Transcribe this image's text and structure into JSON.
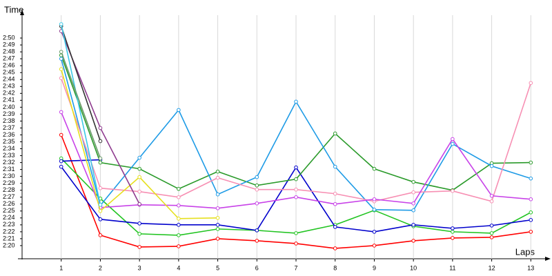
{
  "chart_data": {
    "type": "line",
    "y_label": "Time",
    "x_label": "Laps",
    "x": [
      1,
      2,
      3,
      4,
      5,
      6,
      7,
      8,
      9,
      10,
      11,
      12,
      13
    ],
    "xlim": [
      0,
      13.4
    ],
    "xticks": [
      1,
      2,
      3,
      4,
      5,
      6,
      7,
      8,
      9,
      10,
      11,
      12,
      13
    ],
    "ylim": [
      138.1,
      173.3
    ],
    "yticks": [
      {
        "value": 140,
        "label": "2:20"
      },
      {
        "value": 141,
        "label": "2:21"
      },
      {
        "value": 142,
        "label": "2:22"
      },
      {
        "value": 143,
        "label": "2:23"
      },
      {
        "value": 144,
        "label": "2:24"
      },
      {
        "value": 145,
        "label": "2:25"
      },
      {
        "value": 146,
        "label": "2:26"
      },
      {
        "value": 147,
        "label": "2:27"
      },
      {
        "value": 148,
        "label": "2:28"
      },
      {
        "value": 149,
        "label": "2:29"
      },
      {
        "value": 150,
        "label": "2:30"
      },
      {
        "value": 151,
        "label": "2:31"
      },
      {
        "value": 152,
        "label": "2:32"
      },
      {
        "value": 153,
        "label": "2:33"
      },
      {
        "value": 154,
        "label": "2:34"
      },
      {
        "value": 155,
        "label": "2:35"
      },
      {
        "value": 156,
        "label": "2:36"
      },
      {
        "value": 157,
        "label": "2:37"
      },
      {
        "value": 158,
        "label": "2:38"
      },
      {
        "value": 159,
        "label": "2:39"
      },
      {
        "value": 160,
        "label": "2:40"
      },
      {
        "value": 161,
        "label": "2:41"
      },
      {
        "value": 162,
        "label": "2:42"
      },
      {
        "value": 163,
        "label": "2:43"
      },
      {
        "value": 164,
        "label": "2:44"
      },
      {
        "value": 165,
        "label": "2:45"
      },
      {
        "value": 166,
        "label": "2:46"
      },
      {
        "value": 167,
        "label": "2:47"
      },
      {
        "value": 168,
        "label": "2:48"
      },
      {
        "value": 169,
        "label": "2:49"
      },
      {
        "value": 170,
        "label": "2:50"
      }
    ],
    "grid": true,
    "series": [
      {
        "color": "#ff0000",
        "values": [
          156.0,
          141.5,
          139.8,
          139.9,
          141.0,
          140.7,
          140.3,
          139.6,
          140.0,
          140.7,
          141.1,
          141.2,
          142.0
        ]
      },
      {
        "color": "#22c422",
        "values": [
          152.6,
          146.8,
          141.7,
          141.5,
          142.4,
          142.2,
          141.8,
          143.0,
          145.1,
          142.8,
          142.0,
          141.8,
          144.8
        ]
      },
      {
        "color": "#0000cc",
        "values": [
          151.4,
          143.8,
          143.2,
          143.0,
          143.0,
          142.2,
          151.3,
          142.7,
          142.0,
          143.0,
          142.5,
          142.9,
          143.7
        ]
      },
      {
        "color": "#0000cc",
        "values": [
          152.2,
          152.4,
          null,
          null,
          null,
          null,
          null,
          null,
          null,
          null,
          null,
          null,
          null
        ]
      },
      {
        "color": "#2a9a2a",
        "values": [
          167.5,
          152.0,
          151.1,
          148.2,
          150.7,
          148.7,
          149.6,
          156.2,
          151.1,
          149.2,
          148.0,
          151.9,
          152.0
        ]
      },
      {
        "color": "#1e9be6",
        "values": [
          167.0,
          145.8,
          152.7,
          159.6,
          147.4,
          149.9,
          160.8,
          151.4,
          145.2,
          145.1,
          154.7,
          151.5,
          149.7
        ]
      },
      {
        "color": "#f78fb3",
        "values": [
          164.2,
          148.3,
          147.8,
          147.0,
          149.8,
          148.1,
          148.1,
          147.5,
          146.4,
          147.7,
          147.9,
          146.4,
          163.5
        ]
      },
      {
        "color": "#c842e8",
        "values": [
          159.3,
          145.5,
          145.9,
          145.8,
          145.4,
          146.1,
          147.0,
          146.0,
          146.7,
          146.1,
          155.4,
          147.2,
          146.7
        ]
      },
      {
        "color": "#e6e01e",
        "values": [
          165.5,
          145.0,
          149.9,
          143.9,
          144.0,
          null,
          null,
          null,
          null,
          null,
          null,
          null,
          null
        ]
      },
      {
        "color": "#8e3a8e",
        "values": [
          171.0,
          157.0,
          146.0,
          null,
          null,
          null,
          null,
          null,
          null,
          null,
          null,
          null,
          null
        ]
      },
      {
        "color": "#333333",
        "values": [
          171.7,
          155.1,
          null,
          null,
          null,
          null,
          null,
          null,
          null,
          null,
          null,
          null,
          null
        ]
      },
      {
        "color": "#3cc8e6",
        "values": [
          172.0,
          145.9,
          null,
          null,
          null,
          null,
          null,
          null,
          null,
          null,
          null,
          null,
          null
        ]
      },
      {
        "color": "#6a9a6a",
        "values": [
          168.0,
          152.6,
          null,
          null,
          null,
          null,
          null,
          null,
          null,
          null,
          null,
          null,
          null
        ]
      }
    ]
  }
}
